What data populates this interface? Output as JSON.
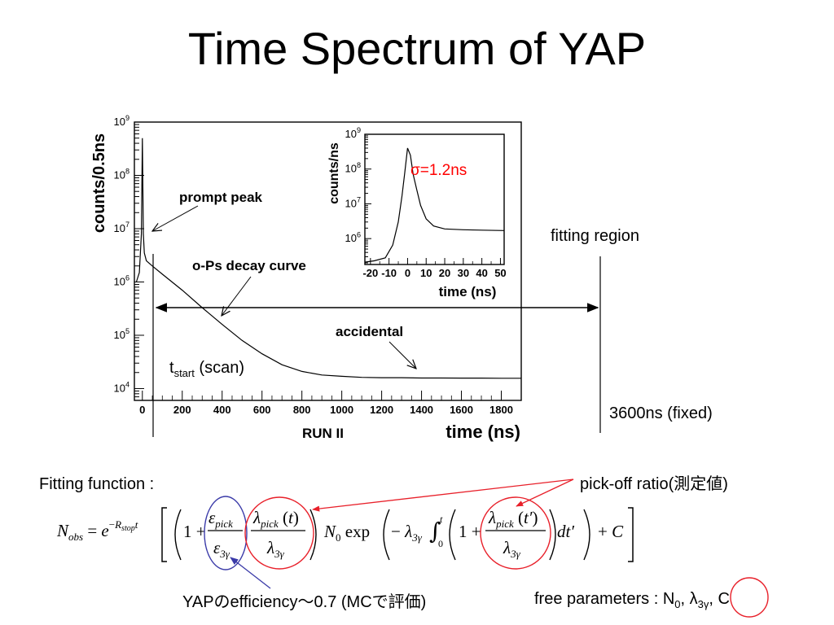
{
  "slide": {
    "title": "Time Spectrum of YAP",
    "fitting_region": "fitting region",
    "t_start_main": "t",
    "t_start_sub": "start",
    "t_start_rest": " (scan)",
    "fixed_end": "3600ns (fixed)",
    "fitting_function_label": "Fitting function :",
    "pickoff_label": "pick-off ratio(測定値)",
    "efficiency_label": "YAPのefficiency～0.7 (MCで評価)",
    "free_params_prefix": "free parameters : N",
    "free_params_n_sub": "0",
    "free_params_lambda": ", λ",
    "free_params_lambda_sub": "3γ",
    "free_params_c": ", C"
  },
  "colors": {
    "annotation_red": "#e8202a",
    "annotation_blue": "#3a3aa8",
    "sigma_red": "#ff0000"
  },
  "chart_data": [
    {
      "type": "line",
      "title": "",
      "bottom_label": "RUN II",
      "xlabel": "time (ns)",
      "ylabel": "counts/0.5ns",
      "xlim": [
        -40,
        1900
      ],
      "ylim": [
        6000,
        1000000000
      ],
      "yscale": "log",
      "x_ticks": [
        0,
        200,
        400,
        600,
        800,
        1000,
        1200,
        1400,
        1600,
        1800
      ],
      "y_ticks": [
        {
          "base": "10",
          "exp": "4",
          "value": 10000
        },
        {
          "base": "10",
          "exp": "5",
          "value": 100000
        },
        {
          "base": "10",
          "exp": "6",
          "value": 1000000
        },
        {
          "base": "10",
          "exp": "7",
          "value": 10000000
        },
        {
          "base": "10",
          "exp": "8",
          "value": 100000000
        },
        {
          "base": "10",
          "exp": "9",
          "value": 1000000000
        }
      ],
      "series": [
        {
          "x": [
            -30,
            -15,
            -5,
            -2,
            0,
            2,
            5,
            10,
            20,
            50,
            100,
            200,
            300,
            400,
            500,
            600,
            700,
            800,
            900,
            1000,
            1100,
            1200,
            1300,
            1400,
            1500,
            1600,
            1700,
            1800,
            1900
          ],
          "y": [
            1000000,
            1500000,
            8000000,
            90000000,
            500000000,
            90000000,
            8000000,
            3500000,
            2500000,
            2000000,
            1400000,
            700000,
            330000,
            160000,
            80000,
            45000,
            28000,
            21000,
            18000,
            17000,
            16200,
            16000,
            16000,
            15800,
            15800,
            15700,
            15700,
            15600,
            15600
          ]
        }
      ],
      "annotations": [
        {
          "text": "prompt peak",
          "x": 20,
          "y": 20000000
        },
        {
          "text": "o-Ps decay curve",
          "x": 420,
          "y": 200000
        },
        {
          "text": "accidental",
          "x": 1370,
          "y": 16000
        }
      ]
    },
    {
      "type": "line",
      "title": "",
      "xlabel": "time (ns)",
      "ylabel": "counts/ns",
      "xlim": [
        -23,
        52
      ],
      "ylim": [
        180000,
        1000000000
      ],
      "yscale": "log",
      "x_ticks": [
        -20,
        -10,
        0,
        10,
        20,
        30,
        40,
        50
      ],
      "x_tick_labels": [
        "-20",
        "-10",
        "0",
        "10",
        "20",
        "30",
        "40",
        "50"
      ],
      "y_ticks": [
        {
          "base": "10",
          "exp": "6",
          "value": 1000000
        },
        {
          "base": "10",
          "exp": "7",
          "value": 10000000
        },
        {
          "base": "10",
          "exp": "8",
          "value": 100000000
        },
        {
          "base": "10",
          "exp": "9",
          "value": 1000000000
        }
      ],
      "series": [
        {
          "x": [
            -23,
            -18,
            -12,
            -8,
            -5,
            -3,
            -1.5,
            0,
            1.5,
            3,
            5,
            7,
            10,
            14,
            20,
            30,
            40,
            52
          ],
          "y": [
            210000,
            230000,
            280000,
            650000,
            3000000,
            17000000,
            80000000,
            400000000,
            250000000,
            70000000,
            25000000,
            9000000,
            3700000,
            2300000,
            1900000,
            1800000,
            1750000,
            1700000
          ]
        }
      ],
      "annotations": [
        {
          "text": "σ=1.2ns",
          "x": 8,
          "y": 130000000
        }
      ]
    }
  ]
}
